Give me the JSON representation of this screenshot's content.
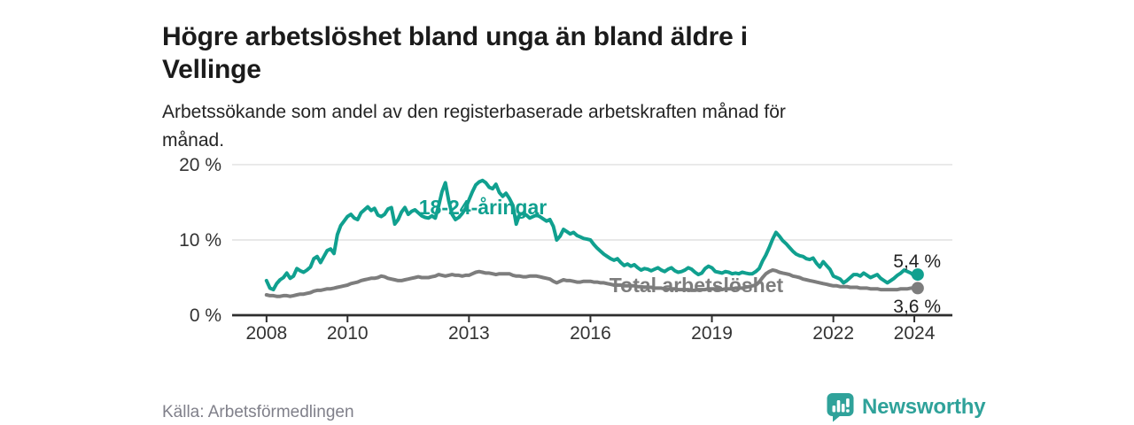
{
  "header": {
    "title_lines": [
      "Högre arbetslöshet bland unga än bland äldre i",
      "Vellinge"
    ],
    "subtitle_lines": [
      "Arbetssökande som andel av den registerbaserade arbetskraften månad för",
      "månad."
    ]
  },
  "footer": {
    "source": "Källa: Arbetsförmedlingen",
    "brand": "Newsworthy",
    "logo_icon": "bar-chart-speech-bubble"
  },
  "colors": {
    "young": "#10a08f",
    "total": "#7d7d7d",
    "axis": "#2e2e2e",
    "axis_text": "#333333",
    "grid": "#e0e0e0",
    "end_label": "#222222",
    "logo": "#2fa29a"
  },
  "chart_data": {
    "type": "line",
    "title": "Högre arbetslöshet bland unga än bland äldre i Vellinge",
    "subtitle": "Arbetssökande som andel av den registerbaserade arbetskraften månad för månad.",
    "unit": "%",
    "frequency": "monthly",
    "x_start": 2008.0,
    "x_ticks": [
      "2008",
      "2010",
      "2013",
      "2016",
      "2019",
      "2022",
      "2024"
    ],
    "y_ticks": [
      0,
      10,
      20
    ],
    "y_tick_suffix": " %",
    "xlim": [
      2007.15,
      2024.94
    ],
    "ylim": [
      0,
      21.88
    ],
    "grid": "horizontal",
    "legend_position": "inline-labels",
    "layout": {
      "x0": 262,
      "x1": 1075,
      "y_bottom": 186,
      "y_top": 0,
      "tick_len": 8,
      "tick_label_y": 213,
      "y_label_offset": 12,
      "line_width": 4,
      "dot_radius": 7,
      "tick_font_size": 21,
      "series_font_size": 23,
      "end_label_font_size": 21
    },
    "series": [
      {
        "name": "18-24-åringar",
        "color_key": "young",
        "end_label": "5,4 %",
        "label_pos": {
          "x": 545,
          "y": 72
        },
        "end_label_pos": {
          "x": 1062,
          "y": 132
        },
        "values": [
          4.6,
          3.6,
          3.4,
          4.2,
          4.7,
          5.0,
          5.6,
          4.9,
          5.2,
          6.2,
          5.9,
          5.7,
          6.0,
          6.4,
          7.5,
          7.8,
          7.0,
          7.8,
          8.6,
          8.8,
          8.2,
          10.7,
          11.9,
          12.5,
          13.1,
          13.4,
          12.9,
          12.7,
          13.6,
          14.0,
          14.4,
          13.9,
          14.2,
          13.3,
          13.1,
          13.4,
          14.1,
          14.3,
          12.1,
          12.7,
          13.7,
          14.3,
          13.4,
          13.8,
          14.0,
          13.6,
          13.2,
          13.0,
          12.9,
          13.2,
          12.9,
          14.5,
          16.4,
          17.6,
          15.2,
          13.4,
          12.7,
          13.0,
          13.5,
          14.2,
          15.3,
          16.4,
          17.3,
          17.7,
          17.9,
          17.6,
          17.0,
          16.8,
          17.4,
          16.3,
          15.8,
          16.2,
          15.5,
          14.6,
          12.1,
          13.4,
          13.5,
          13.3,
          12.9,
          13.1,
          13.3,
          13.1,
          12.8,
          12.5,
          12.7,
          11.8,
          10.0,
          10.5,
          11.4,
          11.1,
          10.8,
          11.0,
          10.6,
          10.4,
          10.2,
          10.1,
          10.0,
          9.4,
          8.9,
          8.5,
          8.1,
          7.8,
          7.5,
          7.3,
          7.5,
          7.0,
          6.6,
          6.8,
          6.5,
          6.7,
          6.3,
          6.0,
          6.2,
          6.1,
          5.9,
          6.1,
          6.3,
          6.0,
          5.8,
          6.1,
          6.3,
          5.9,
          5.7,
          5.8,
          6.0,
          6.3,
          6.1,
          5.7,
          5.4,
          5.6,
          6.2,
          6.5,
          6.3,
          5.8,
          5.7,
          5.6,
          5.8,
          5.7,
          5.5,
          5.6,
          5.5,
          5.7,
          5.6,
          5.5,
          5.5,
          5.8,
          6.2,
          7.2,
          8.0,
          9.0,
          10.1,
          11.0,
          10.5,
          9.9,
          9.5,
          9.0,
          8.5,
          8.1,
          7.9,
          7.8,
          7.5,
          7.4,
          7.6,
          6.9,
          6.4,
          7.1,
          6.6,
          6.1,
          5.2,
          5.0,
          4.8,
          4.3,
          4.6,
          5.0,
          5.4,
          5.4,
          5.2,
          5.6,
          5.3,
          5.0,
          5.2,
          5.4,
          4.9,
          4.6,
          4.3,
          4.6,
          4.9,
          5.3,
          5.6,
          6.0,
          5.8,
          5.6,
          5.2,
          5.4
        ]
      },
      {
        "name": "Total arbetslöshet",
        "color_key": "total",
        "end_label": "3,6 %",
        "label_pos": {
          "x": 786,
          "y": 160
        },
        "end_label_pos": {
          "x": 1062,
          "y": 183
        },
        "values": [
          2.7,
          2.6,
          2.6,
          2.5,
          2.5,
          2.6,
          2.6,
          2.5,
          2.6,
          2.7,
          2.8,
          2.8,
          2.9,
          3.0,
          3.2,
          3.3,
          3.3,
          3.4,
          3.5,
          3.5,
          3.6,
          3.7,
          3.8,
          3.9,
          4.0,
          4.2,
          4.3,
          4.4,
          4.6,
          4.7,
          4.8,
          4.9,
          4.9,
          5.0,
          5.2,
          5.1,
          4.9,
          4.8,
          4.7,
          4.6,
          4.6,
          4.7,
          4.8,
          4.9,
          5.0,
          5.1,
          5.0,
          5.0,
          5.0,
          5.1,
          5.2,
          5.4,
          5.3,
          5.2,
          5.3,
          5.4,
          5.3,
          5.3,
          5.2,
          5.3,
          5.3,
          5.5,
          5.7,
          5.8,
          5.7,
          5.6,
          5.6,
          5.5,
          5.4,
          5.5,
          5.5,
          5.5,
          5.5,
          5.3,
          5.2,
          5.2,
          5.1,
          5.1,
          5.2,
          5.2,
          5.2,
          5.1,
          5.0,
          4.9,
          4.8,
          4.5,
          4.3,
          4.5,
          4.7,
          4.6,
          4.6,
          4.5,
          4.4,
          4.4,
          4.5,
          4.5,
          4.5,
          4.4,
          4.4,
          4.3,
          4.3,
          4.2,
          4.1,
          4.0,
          4.0,
          4.0,
          3.9,
          3.9,
          3.9,
          3.9,
          3.8,
          3.8,
          3.7,
          3.7,
          3.7,
          3.6,
          3.6,
          3.6,
          3.5,
          3.5,
          3.5,
          3.5,
          3.4,
          3.4,
          3.4,
          3.4,
          3.3,
          3.3,
          3.4,
          3.4,
          3.4,
          3.5,
          3.5,
          3.5,
          3.4,
          3.4,
          3.5,
          3.5,
          3.5,
          3.6,
          3.6,
          3.6,
          3.7,
          3.8,
          3.9,
          4.0,
          4.4,
          5.0,
          5.5,
          5.8,
          6.0,
          5.9,
          5.7,
          5.6,
          5.5,
          5.4,
          5.2,
          5.1,
          5.0,
          4.8,
          4.7,
          4.6,
          4.5,
          4.4,
          4.3,
          4.2,
          4.1,
          4.0,
          3.9,
          3.9,
          3.8,
          3.8,
          3.8,
          3.7,
          3.7,
          3.7,
          3.6,
          3.6,
          3.6,
          3.5,
          3.5,
          3.5,
          3.4,
          3.4,
          3.4,
          3.4,
          3.4,
          3.4,
          3.5,
          3.5,
          3.5,
          3.6,
          3.6,
          3.6
        ]
      }
    ]
  }
}
